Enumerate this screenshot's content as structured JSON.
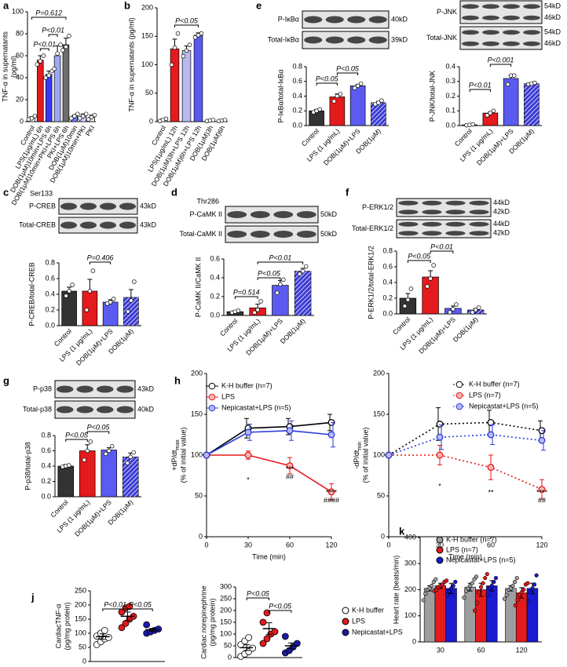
{
  "chart_data": [
    {
      "type": "bar",
      "label": "a",
      "ylabel": [
        "TNF-α in supernatants",
        "(pg/ml)"
      ],
      "categories": [
        "Control",
        "LPS(1μg/mL) 6h",
        "DOB(1μM)10min+LPS 6h",
        "DOB(1μM)10min+PKI+LPS 6h",
        "PKI+LPS 6h",
        "DOB(1μM)10min",
        "DOB(1μM)10min+PKI",
        "PKI"
      ],
      "values": [
        3.5,
        56,
        43,
        60,
        70,
        5,
        5,
        4
      ],
      "errors": [
        1,
        4,
        3,
        9,
        6,
        1,
        2,
        2
      ],
      "points": [
        [
          2,
          3,
          5
        ],
        [
          52,
          55,
          60
        ],
        [
          40,
          42,
          46
        ],
        [
          48,
          62,
          70
        ],
        [
          65,
          68,
          78
        ],
        [
          3,
          5,
          7
        ],
        [
          3,
          5,
          7
        ],
        [
          2,
          4,
          6
        ]
      ],
      "colors": [
        "#ffffff",
        "#e41a1c",
        "#3a3af2",
        "#9fa8f5",
        "#6e6e6e",
        "#6f7cf2",
        "#bcc3f7",
        "#e8e8e8"
      ],
      "hatched": [
        false,
        false,
        false,
        false,
        false,
        false,
        true,
        false
      ],
      "ylim": [
        0,
        100
      ],
      "yticks": [
        0,
        20,
        40,
        60,
        80,
        100
      ],
      "stats": [
        "P=0.612",
        "P<0.01",
        "P<0.01"
      ]
    },
    {
      "type": "bar",
      "label": "b",
      "ylabel": [
        "TNF-α in supernatants (pg/ml)"
      ],
      "categories": [
        "Control",
        "LPS(1μg/mL) 12h",
        "DOB(1μM)3h+LPS 12h",
        "DOB(1μM)6h+LPS 12h",
        "DOB(1μM)3h",
        "DOB(1μM)6h"
      ],
      "values": [
        3,
        128,
        125,
        152,
        2,
        2
      ],
      "errors": [
        2,
        17,
        8,
        4,
        1,
        1
      ],
      "points": [
        [
          1,
          3,
          5
        ],
        [
          100,
          130,
          155
        ],
        [
          115,
          125,
          135
        ],
        [
          148,
          152,
          155
        ],
        [
          1,
          2,
          3
        ],
        [
          1,
          2,
          3
        ]
      ],
      "colors": [
        "#ffffff",
        "#e41a1c",
        "#b9b9f0",
        "#5a5af0",
        "#ffffff",
        "#ffffff"
      ],
      "hatched": [
        false,
        false,
        false,
        false,
        false,
        false
      ],
      "ylim": [
        0,
        200
      ],
      "yticks": [
        0,
        50,
        100,
        150,
        200
      ],
      "stats": [
        "P<0.05"
      ]
    },
    {
      "type": "bar",
      "label": "e",
      "ylabel": [
        "P-IκBα/total-IκBα"
      ],
      "blots": [
        {
          "name": "P-IκBα",
          "sizes": [
            "40kD"
          ]
        },
        {
          "name": "Total-IκBα",
          "sizes": [
            "39kD"
          ]
        }
      ],
      "categories": [
        "Control",
        "LPS (1 μg/mL)",
        "DOB(1μM)+LPS",
        "DOB(1μM)"
      ],
      "values": [
        0.2,
        0.39,
        0.54,
        0.31
      ],
      "errors": [
        0.02,
        0.04,
        0.02,
        0.02
      ],
      "points": [
        [
          0.18,
          0.2,
          0.22
        ],
        [
          0.33,
          0.4,
          0.43
        ],
        [
          0.51,
          0.54,
          0.57
        ],
        [
          0.29,
          0.31,
          0.34
        ]
      ],
      "colors": [
        "#333333",
        "#e41a1c",
        "#5b5bf2",
        "#3b3bd6"
      ],
      "hatched": [
        false,
        false,
        false,
        true
      ],
      "ylim": [
        0,
        0.8
      ],
      "yticks": [
        {
          "value": 0,
          "label": "0.0"
        },
        0.2,
        0.4,
        0.6,
        0.8
      ],
      "stats": [
        "P<0.05",
        "P<0.05"
      ]
    },
    {
      "type": "bar",
      "ylabel": [
        "P-JNK/total-JNK"
      ],
      "blots": [
        {
          "name": "P-JNK",
          "sizes": [
            "54kD",
            "46kD"
          ]
        },
        {
          "name": "Total-JNK",
          "sizes": [
            "54kD",
            "46kD"
          ]
        }
      ],
      "categories": [
        "Control",
        "LPS (1 μg/mL)",
        "DOB(1μM)+LPS",
        "DOB(1μM)"
      ],
      "values": [
        0.005,
        0.085,
        0.32,
        0.285
      ],
      "errors": [
        0.003,
        0.01,
        0.02,
        0.005
      ],
      "points": [
        [
          0.002,
          0.005,
          0.008
        ],
        [
          0.07,
          0.085,
          0.1
        ],
        [
          0.28,
          0.34,
          0.34
        ],
        [
          0.28,
          0.285,
          0.29
        ]
      ],
      "colors": [
        "#333333",
        "#e41a1c",
        "#5b5bf2",
        "#3b3bd6"
      ],
      "hatched": [
        false,
        false,
        false,
        true
      ],
      "ylim": [
        0,
        0.4
      ],
      "yticks": [
        {
          "value": 0,
          "label": "0.0"
        },
        0.1,
        0.2,
        0.3,
        0.4
      ],
      "stats": [
        "P<0.01",
        "P<0.001"
      ]
    },
    {
      "type": "bar",
      "label": "c",
      "ylabel": [
        "P-CREB/total-CREB"
      ],
      "blots": [
        {
          "name": "P-CREB",
          "site": "Ser133",
          "sizes": [
            "43kD"
          ]
        },
        {
          "name": "Total-CREB",
          "sizes": [
            "43kD"
          ]
        }
      ],
      "categories": [
        "Control",
        "LPS (1 μg/mL)",
        "DOB(1μM)+LPS",
        "DOB(1μM)"
      ],
      "values": [
        0.44,
        0.44,
        0.3,
        0.36
      ],
      "errors": [
        0.05,
        0.15,
        0.03,
        0.1
      ],
      "points": [
        [
          0.38,
          0.44,
          0.52
        ],
        [
          0.2,
          0.44,
          0.7
        ],
        [
          0.28,
          0.3,
          0.34
        ],
        [
          0.18,
          0.32,
          0.56
        ]
      ],
      "colors": [
        "#333333",
        "#e41a1c",
        "#5b5bf2",
        "#3b3bd6"
      ],
      "hatched": [
        false,
        false,
        false,
        true
      ],
      "ylim": [
        0,
        0.8
      ],
      "yticks": [
        {
          "value": 0,
          "label": "0.0"
        },
        0.2,
        0.4,
        0.6,
        0.8
      ],
      "stats": [
        "P=0.406"
      ]
    },
    {
      "type": "bar",
      "label": "d",
      "ylabel": [
        "P-CaMK II/CaMK II"
      ],
      "blots": [
        {
          "name": "P-CaMK II",
          "site": "Thr286",
          "sizes": [
            "50kD"
          ]
        },
        {
          "name": "Total-CaMK II",
          "sizes": [
            "50kD"
          ]
        }
      ],
      "categories": [
        "Control",
        "LPS (1 μg/mL)",
        "DOB(1μM)+LPS",
        "DOB(1μM)"
      ],
      "values": [
        0.04,
        0.08,
        0.32,
        0.47
      ],
      "errors": [
        0.01,
        0.04,
        0.05,
        0.03
      ],
      "points": [
        [
          0.03,
          0.04,
          0.05
        ],
        [
          0.03,
          0.06,
          0.15
        ],
        [
          0.24,
          0.33,
          0.38
        ],
        [
          0.44,
          0.47,
          0.52
        ]
      ],
      "colors": [
        "#333333",
        "#e41a1c",
        "#5b5bf2",
        "#3b3bd6"
      ],
      "hatched": [
        false,
        false,
        false,
        true
      ],
      "ylim": [
        0,
        0.6
      ],
      "yticks": [
        {
          "value": 0,
          "label": "0.0"
        },
        0.2,
        0.4,
        0.6
      ],
      "stats": [
        "P=0.514",
        "P<0.05",
        "P<0.01"
      ]
    },
    {
      "type": "bar",
      "label": "f",
      "ylabel": [
        "P-ERK1/2/total-ERK1/2"
      ],
      "blots": [
        {
          "name": "P-ERK1/2",
          "sizes": [
            "44kD",
            "42kD"
          ]
        },
        {
          "name": "Total-ERK1/2",
          "sizes": [
            "44kD",
            "42kD"
          ]
        }
      ],
      "categories": [
        "Control",
        "LPS (1 μg/mL)",
        "DOB(1μM)+LPS",
        "DOB(1μM)"
      ],
      "values": [
        0.2,
        0.47,
        0.07,
        0.05
      ],
      "errors": [
        0.06,
        0.08,
        0.03,
        0.02
      ],
      "points": [
        [
          0.1,
          0.18,
          0.32
        ],
        [
          0.35,
          0.45,
          0.62
        ],
        [
          0.02,
          0.06,
          0.12
        ],
        [
          0.02,
          0.05,
          0.08
        ]
      ],
      "colors": [
        "#333333",
        "#e41a1c",
        "#5b5bf2",
        "#3b3bd6"
      ],
      "hatched": [
        false,
        false,
        false,
        true
      ],
      "ylim": [
        0,
        0.8
      ],
      "yticks": [
        {
          "value": 0,
          "label": "0.0"
        },
        0.2,
        0.4,
        0.6,
        0.8
      ],
      "stats": [
        "P<0.05",
        "P<0.01"
      ]
    },
    {
      "type": "bar",
      "label": "g",
      "ylabel": [
        "P-p38/total-p38"
      ],
      "blots": [
        {
          "name": "P-p38",
          "sizes": [
            "43kD"
          ]
        },
        {
          "name": "Total-p38",
          "sizes": [
            "40kD"
          ]
        }
      ],
      "categories": [
        "Control",
        "LPS (1 μg/mL)",
        "DOB(1μM)+LPS",
        "DOB(1μM)"
      ],
      "values": [
        0.4,
        0.6,
        0.61,
        0.52
      ],
      "errors": [
        0.02,
        0.08,
        0.03,
        0.05
      ],
      "points": [
        [
          0.39,
          0.4,
          0.41
        ],
        [
          0.48,
          0.6,
          0.72
        ],
        [
          0.56,
          0.6,
          0.66
        ],
        [
          0.44,
          0.52,
          0.58
        ]
      ],
      "colors": [
        "#333333",
        "#e41a1c",
        "#5b5bf2",
        "#3b3bd6"
      ],
      "hatched": [
        false,
        false,
        false,
        true
      ],
      "ylim": [
        0,
        0.8
      ],
      "yticks": [
        {
          "value": 0,
          "label": "0.0"
        },
        0.2,
        0.4,
        0.6,
        0.8
      ],
      "stats": [
        "P<0.05",
        "P<0.05"
      ]
    },
    {
      "type": "line",
      "label": "h",
      "ylabel": [
        "+dP/dt",
        "(% of initial value)"
      ],
      "ylabel_sub": "max",
      "xlabel": "Time (min)",
      "categories": [
        "0",
        "30",
        "60",
        "120"
      ],
      "dashed": false,
      "series": [
        {
          "name": "K-H buffer (n=7)",
          "color": "#000000",
          "marker_fill": "#ffffff",
          "values": [
            100,
            133,
            135,
            140
          ],
          "errors": [
            0,
            12,
            10,
            10
          ]
        },
        {
          "name": "LPS",
          "color": "#e41a1c",
          "marker_fill": "#f8b4b4",
          "values": [
            100,
            100,
            87,
            55
          ],
          "errors": [
            0,
            5,
            10,
            10
          ]
        },
        {
          "name": "Nepicastat+LPS (n=5)",
          "color": "#2b3bd9",
          "marker_fill": "#b4b8f5",
          "values": [
            100,
            128,
            130,
            125
          ],
          "errors": [
            0,
            10,
            12,
            15
          ]
        }
      ],
      "ylim": [
        0,
        200
      ],
      "yticks": [
        0,
        50,
        100,
        150,
        200
      ],
      "annotations": [
        "*",
        "***",
        "##",
        "****",
        "####"
      ]
    },
    {
      "type": "line",
      "ylabel": [
        "-dP/dt",
        "(% of initial value)"
      ],
      "ylabel_sub": "min",
      "xlabel": "Time (min)",
      "categories": [
        "0",
        "30",
        "60",
        "120"
      ],
      "dashed": true,
      "series": [
        {
          "name": "K-H buffer (n=7)",
          "color": "#000000",
          "marker_fill": "#ffffff",
          "values": [
            100,
            138,
            140,
            130
          ],
          "errors": [
            0,
            20,
            15,
            12
          ]
        },
        {
          "name": "LPS (n=7)",
          "color": "#e41a1c",
          "marker_fill": "#f8b4b4",
          "values": [
            100,
            100,
            85,
            58
          ],
          "errors": [
            0,
            12,
            15,
            12
          ]
        },
        {
          "name": "Nepicastat+LPS (n=5)",
          "color": "#2b3bd9",
          "marker_fill": "#b4b8f5",
          "values": [
            100,
            122,
            125,
            118
          ],
          "errors": [
            0,
            15,
            12,
            12
          ]
        }
      ],
      "ylim": [
        0,
        200
      ],
      "yticks": [
        0,
        50,
        100,
        150,
        200
      ],
      "annotations": [
        "*",
        "**",
        "****",
        "##"
      ]
    },
    {
      "type": "dot",
      "label": "j",
      "ylabel": [
        "CardiacTNF-α",
        "(pg/mg protein)"
      ],
      "values": [
        88,
        160,
        112
      ],
      "errors": [
        10,
        15,
        5
      ],
      "points": [
        [
          60,
          70,
          80,
          85,
          90,
          100,
          110
        ],
        [
          120,
          135,
          150,
          160,
          175,
          190,
          195
        ],
        [
          100,
          105,
          110,
          115,
          130
        ]
      ],
      "colors": [
        "#ffffff",
        "#e41a1c",
        "#1a1aa8"
      ],
      "ylim": [
        0,
        250
      ],
      "yticks": [
        0,
        50,
        100,
        150,
        200,
        250
      ],
      "stats": [
        "P<0.01",
        "P<0.05"
      ]
    },
    {
      "type": "dot",
      "ylabel": [
        "Cardiac norepinephrine",
        "(pg/mg protein)"
      ],
      "categories": [
        "K-H buffer",
        "LPS",
        "Nepicastat+LPS"
      ],
      "values": [
        42,
        123,
        50
      ],
      "errors": [
        12,
        25,
        12
      ],
      "points": [
        [
          5,
          15,
          25,
          40,
          55,
          70,
          85
        ],
        [
          60,
          80,
          100,
          110,
          150,
          190
        ],
        [
          20,
          30,
          45,
          60,
          90
        ]
      ],
      "colors": [
        "#ffffff",
        "#e41a1c",
        "#1a1aa8"
      ],
      "ylim": [
        0,
        300
      ],
      "yticks": [
        0,
        50,
        100,
        150,
        200,
        250,
        300
      ],
      "stats": [
        "P<0.05",
        "P<0.05"
      ]
    },
    {
      "type": "bar",
      "label": "k",
      "ylabel": [
        "Heart rate (beats/min)"
      ],
      "categories": [
        "30",
        "60",
        "120"
      ],
      "series": [
        {
          "name": "K-H buffer (n=7)",
          "color": "#9e9e9e",
          "values": [
            205,
            210,
            205
          ],
          "errors": [
            10,
            15,
            10
          ],
          "points": [
            [
              160,
              185,
              200,
              205,
              215,
              230,
              240
            ],
            [
              170,
              195,
              205,
              215,
              225,
              240,
              250
            ],
            [
              165,
              180,
              200,
              205,
              215,
              230,
              245
            ]
          ]
        },
        {
          "name": "LPS (n=7)",
          "color": "#e41a1c",
          "values": [
            215,
            200,
            188
          ],
          "errors": [
            10,
            25,
            20
          ],
          "points": [
            [
              195,
              200,
              210,
              215,
              220,
              230,
              235
            ],
            [
              120,
              150,
              190,
              210,
              225,
              245,
              260
            ],
            [
              140,
              160,
              180,
              190,
              200,
              220,
              225
            ]
          ]
        },
        {
          "name": "Nepicastat+LPS (n=5)",
          "color": "#1a1ad0",
          "values": [
            205,
            215,
            205
          ],
          "errors": [
            20,
            20,
            20
          ],
          "points": [
            [
              180,
              195,
              205,
              215,
              230
            ],
            [
              180,
              205,
              215,
              230,
              245
            ],
            [
              155,
              190,
              205,
              220,
              255
            ]
          ]
        }
      ],
      "ylim": [
        0,
        400
      ],
      "yticks": [
        0,
        100,
        200,
        300,
        400
      ]
    }
  ]
}
